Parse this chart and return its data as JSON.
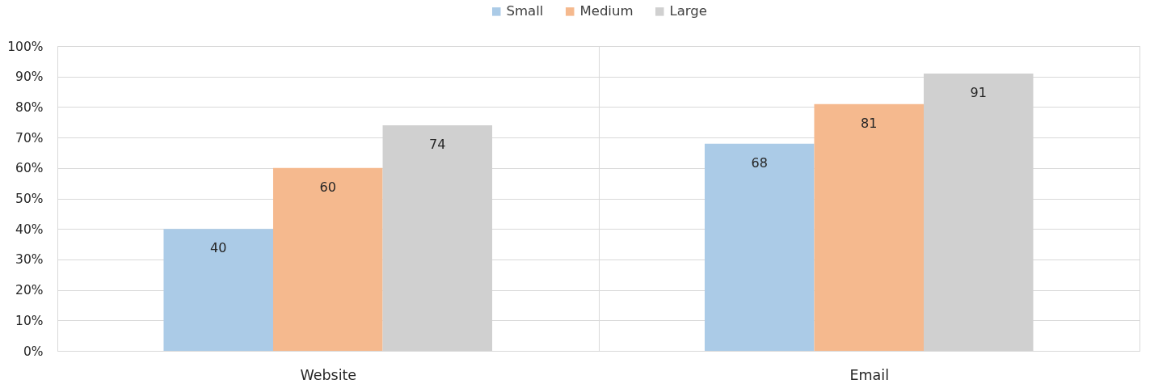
{
  "chart_data": {
    "type": "bar",
    "categories": [
      "Website",
      "Email"
    ],
    "series": [
      {
        "name": "Small",
        "color": "#abcbe7",
        "values": [
          40,
          68
        ]
      },
      {
        "name": "Medium",
        "color": "#f5b98e",
        "values": [
          60,
          81
        ]
      },
      {
        "name": "Large",
        "color": "#d0d0d0",
        "values": [
          74,
          91
        ]
      }
    ],
    "ylim": [
      0,
      100
    ],
    "yticks": [
      {
        "value": 0,
        "label": "0%"
      },
      {
        "value": 10,
        "label": "10%"
      },
      {
        "value": 20,
        "label": "20%"
      },
      {
        "value": 30,
        "label": "30%"
      },
      {
        "value": 40,
        "label": "40%"
      },
      {
        "value": 50,
        "label": "50%"
      },
      {
        "value": 60,
        "label": "60%"
      },
      {
        "value": 70,
        "label": "70%"
      },
      {
        "value": 80,
        "label": "80%"
      },
      {
        "value": 90,
        "label": "90%"
      },
      {
        "value": 100,
        "label": "100%"
      }
    ],
    "grid": true,
    "legend": "top",
    "data_labels": true
  }
}
